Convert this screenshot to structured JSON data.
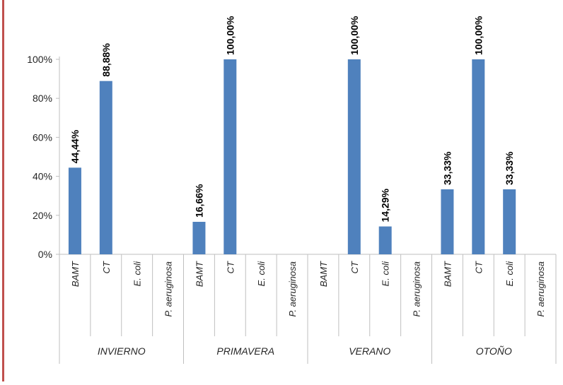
{
  "chart_data": {
    "type": "bar",
    "title": "",
    "xlabel": "",
    "ylabel": "",
    "ylim": [
      0,
      100
    ],
    "yticks": [
      "0%",
      "20%",
      "40%",
      "60%",
      "80%",
      "100%"
    ],
    "groups": [
      {
        "name": "INVIERNO",
        "categories": [
          "BAMT",
          "CT",
          "E. coli",
          "P. aeruginosa"
        ],
        "values": [
          44.44,
          88.88,
          null,
          null
        ],
        "labels": [
          "44,44%",
          "88,88%",
          "",
          ""
        ]
      },
      {
        "name": "PRIMAVERA",
        "categories": [
          "BAMT",
          "CT",
          "E. coli",
          "P. aeruginosa"
        ],
        "values": [
          16.66,
          100.0,
          null,
          null
        ],
        "labels": [
          "16,66%",
          "100,00%",
          "",
          ""
        ]
      },
      {
        "name": "VERANO",
        "categories": [
          "BAMT",
          "CT",
          "E. coli",
          "P. aeruginosa"
        ],
        "values": [
          null,
          100.0,
          14.29,
          null
        ],
        "labels": [
          "",
          "100,00%",
          "14,29%",
          ""
        ]
      },
      {
        "name": "OTOÑO",
        "categories": [
          "BAMT",
          "CT",
          "E. coli",
          "P. aeruginosa"
        ],
        "values": [
          33.33,
          100.0,
          33.33,
          null
        ],
        "labels": [
          "33,33%",
          "100,00%",
          "33,33%",
          ""
        ]
      }
    ],
    "colors": {
      "bar": "#4f81bd",
      "axis": "#bfbfbf",
      "frame_rule": "#c0504d"
    },
    "grid": false,
    "legend": "none"
  }
}
